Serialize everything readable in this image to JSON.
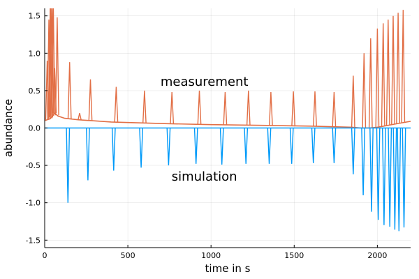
{
  "chart_data": {
    "type": "line",
    "title": "",
    "xlabel": "time in s",
    "ylabel": "abundance",
    "xlim": [
      0,
      2200
    ],
    "ylim": [
      -1.6,
      1.6
    ],
    "x_ticks": [
      0,
      500,
      1000,
      1500,
      2000
    ],
    "y_ticks": [
      -1.5,
      -1.0,
      -0.5,
      0.0,
      0.5,
      1.0,
      1.5
    ],
    "x_tick_labels": [
      "0",
      "500",
      "1000",
      "1500",
      "2000"
    ],
    "y_tick_labels": [
      "-1.5",
      "-1.0",
      "-0.5",
      "0.0",
      "0.5",
      "1.0",
      "1.5"
    ],
    "grid": true,
    "legend": "none",
    "annotations": [
      {
        "text": "measurement",
        "x": 960,
        "y": 0.62
      },
      {
        "text": "simulation",
        "x": 960,
        "y": -0.65
      }
    ],
    "series": [
      {
        "color": "#e26f46",
        "baseline": [
          [
            0,
            0.1
          ],
          [
            30,
            0.12
          ],
          [
            60,
            0.2
          ],
          [
            80,
            0.16
          ],
          [
            120,
            0.13
          ],
          [
            200,
            0.11
          ],
          [
            400,
            0.08
          ],
          [
            700,
            0.06
          ],
          [
            1000,
            0.045
          ],
          [
            1300,
            0.035
          ],
          [
            1600,
            0.025
          ],
          [
            1850,
            0.01
          ],
          [
            1900,
            0.0
          ],
          [
            1950,
            0.0
          ],
          [
            2000,
            0.01
          ],
          [
            2050,
            0.03
          ],
          [
            2100,
            0.05
          ],
          [
            2150,
            0.07
          ],
          [
            2200,
            0.09
          ]
        ],
        "peaks": [
          {
            "x": 15,
            "y": 0.9
          },
          {
            "x": 25,
            "y": 1.45
          },
          {
            "x": 33,
            "y": 1.6
          },
          {
            "x": 38,
            "y": 1.6
          },
          {
            "x": 45,
            "y": 1.6
          },
          {
            "x": 52,
            "y": 1.6
          },
          {
            "x": 60,
            "y": 0.8
          },
          {
            "x": 75,
            "y": 1.48
          },
          {
            "x": 150,
            "y": 0.88
          },
          {
            "x": 210,
            "y": 0.2
          },
          {
            "x": 275,
            "y": 0.65
          },
          {
            "x": 430,
            "y": 0.55
          },
          {
            "x": 600,
            "y": 0.5
          },
          {
            "x": 765,
            "y": 0.48
          },
          {
            "x": 930,
            "y": 0.5
          },
          {
            "x": 1085,
            "y": 0.48
          },
          {
            "x": 1225,
            "y": 0.5
          },
          {
            "x": 1360,
            "y": 0.48
          },
          {
            "x": 1495,
            "y": 0.49
          },
          {
            "x": 1625,
            "y": 0.49
          },
          {
            "x": 1740,
            "y": 0.48
          },
          {
            "x": 1855,
            "y": 0.7
          },
          {
            "x": 1920,
            "y": 1.0
          },
          {
            "x": 1960,
            "y": 1.2
          },
          {
            "x": 2000,
            "y": 1.33
          },
          {
            "x": 2035,
            "y": 1.4
          },
          {
            "x": 2065,
            "y": 1.45
          },
          {
            "x": 2095,
            "y": 1.5
          },
          {
            "x": 2125,
            "y": 1.54
          },
          {
            "x": 2155,
            "y": 1.58
          }
        ]
      },
      {
        "color": "#009af9",
        "baseline": [
          [
            0,
            0.0
          ],
          [
            2200,
            0.0
          ]
        ],
        "peaks": [
          {
            "x": 140,
            "y": -1.0
          },
          {
            "x": 260,
            "y": -0.7
          },
          {
            "x": 415,
            "y": -0.57
          },
          {
            "x": 580,
            "y": -0.53
          },
          {
            "x": 745,
            "y": -0.5
          },
          {
            "x": 910,
            "y": -0.48
          },
          {
            "x": 1065,
            "y": -0.49
          },
          {
            "x": 1210,
            "y": -0.48
          },
          {
            "x": 1350,
            "y": -0.48
          },
          {
            "x": 1485,
            "y": -0.48
          },
          {
            "x": 1615,
            "y": -0.47
          },
          {
            "x": 1740,
            "y": -0.47
          },
          {
            "x": 1855,
            "y": -0.62
          },
          {
            "x": 1915,
            "y": -0.9
          },
          {
            "x": 1965,
            "y": -1.12
          },
          {
            "x": 2005,
            "y": -1.23
          },
          {
            "x": 2040,
            "y": -1.3
          },
          {
            "x": 2075,
            "y": -1.32
          },
          {
            "x": 2105,
            "y": -1.36
          },
          {
            "x": 2130,
            "y": -1.38
          },
          {
            "x": 2160,
            "y": -1.33
          }
        ]
      }
    ]
  }
}
